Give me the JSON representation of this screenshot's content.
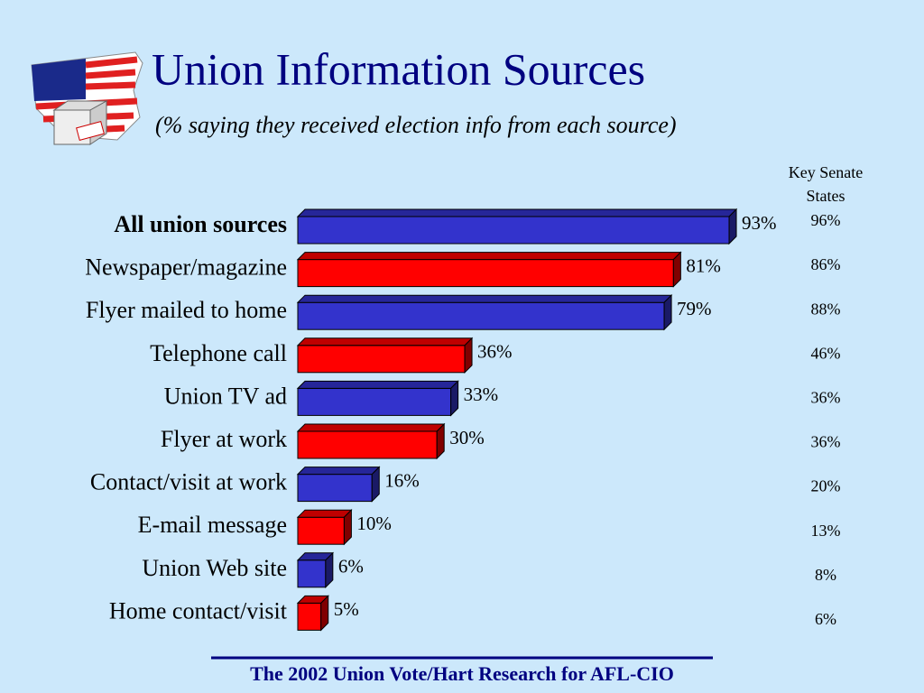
{
  "chart_data": {
    "type": "bar3d",
    "title": "Union Information Sources",
    "subtitle": "(% saying they received election info from each source)",
    "categories": [
      "All union sources",
      "Newspaper/magazine",
      "Flyer mailed to home",
      "Telephone call",
      "Union TV ad",
      "Flyer at work",
      "Contact/visit at work",
      "E-mail message",
      "Union Web site",
      "Home contact/visit"
    ],
    "values": [
      93,
      81,
      79,
      36,
      33,
      30,
      16,
      10,
      6,
      5
    ],
    "value_labels": [
      "93%",
      "81%",
      "79%",
      "36%",
      "33%",
      "30%",
      "16%",
      "10%",
      "6%",
      "5%"
    ],
    "colors": [
      "#3333cc",
      "#ff0000",
      "#3333cc",
      "#ff0000",
      "#3333cc",
      "#ff0000",
      "#3333cc",
      "#ff0000",
      "#3333cc",
      "#ff0000"
    ],
    "secondary_column": {
      "name": "Key Senate States",
      "values": [
        96,
        86,
        88,
        46,
        36,
        36,
        20,
        13,
        8,
        6
      ],
      "value_labels": [
        "96%",
        "86%",
        "88%",
        "46%",
        "36%",
        "36%",
        "20%",
        "13%",
        "8%",
        "6%"
      ]
    },
    "source": "The 2002 Union Vote/Hart Research for AFL-CIO"
  }
}
